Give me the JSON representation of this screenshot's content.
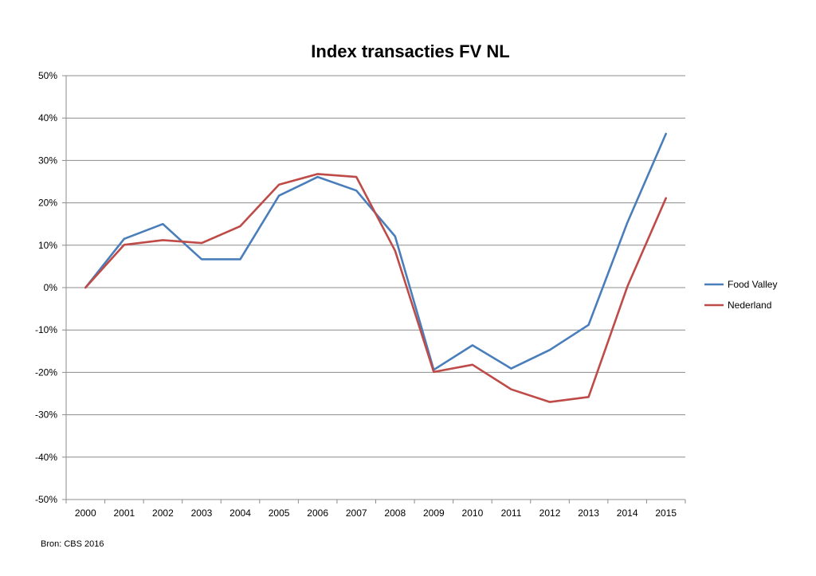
{
  "chart_data": {
    "type": "line",
    "title": "Index transacties FV NL",
    "xlabel": "",
    "ylabel": "",
    "categories": [
      "2000",
      "2001",
      "2002",
      "2003",
      "2004",
      "2005",
      "2006",
      "2007",
      "2008",
      "2009",
      "2010",
      "2011",
      "2012",
      "2013",
      "2014",
      "2015"
    ],
    "ylim": [
      -50,
      50
    ],
    "yticks": [
      50,
      40,
      30,
      20,
      10,
      0,
      -10,
      -20,
      -30,
      -40,
      -50
    ],
    "ytick_labels": [
      "50%",
      "40%",
      "30%",
      "20%",
      "10%",
      "0%",
      "-10%",
      "-20%",
      "-30%",
      "-40%",
      "-50%"
    ],
    "grid": true,
    "legend_position": "right",
    "series": [
      {
        "name": "Food Valley",
        "color": "#4a7ebb",
        "values": [
          0,
          11.5,
          15,
          6.7,
          6.7,
          21.7,
          26.1,
          22.9,
          12.1,
          -19.4,
          -13.6,
          -19.1,
          -14.7,
          -8.8,
          15.3,
          36.3
        ]
      },
      {
        "name": "Nederland",
        "color": "#be4b48",
        "values": [
          0,
          10.1,
          11.2,
          10.5,
          14.5,
          24.3,
          26.8,
          26.1,
          8.7,
          -19.9,
          -18.2,
          -24.0,
          -27.0,
          -25.8,
          0.2,
          21.1
        ]
      }
    ]
  },
  "source_note": "Bron: CBS 2016"
}
